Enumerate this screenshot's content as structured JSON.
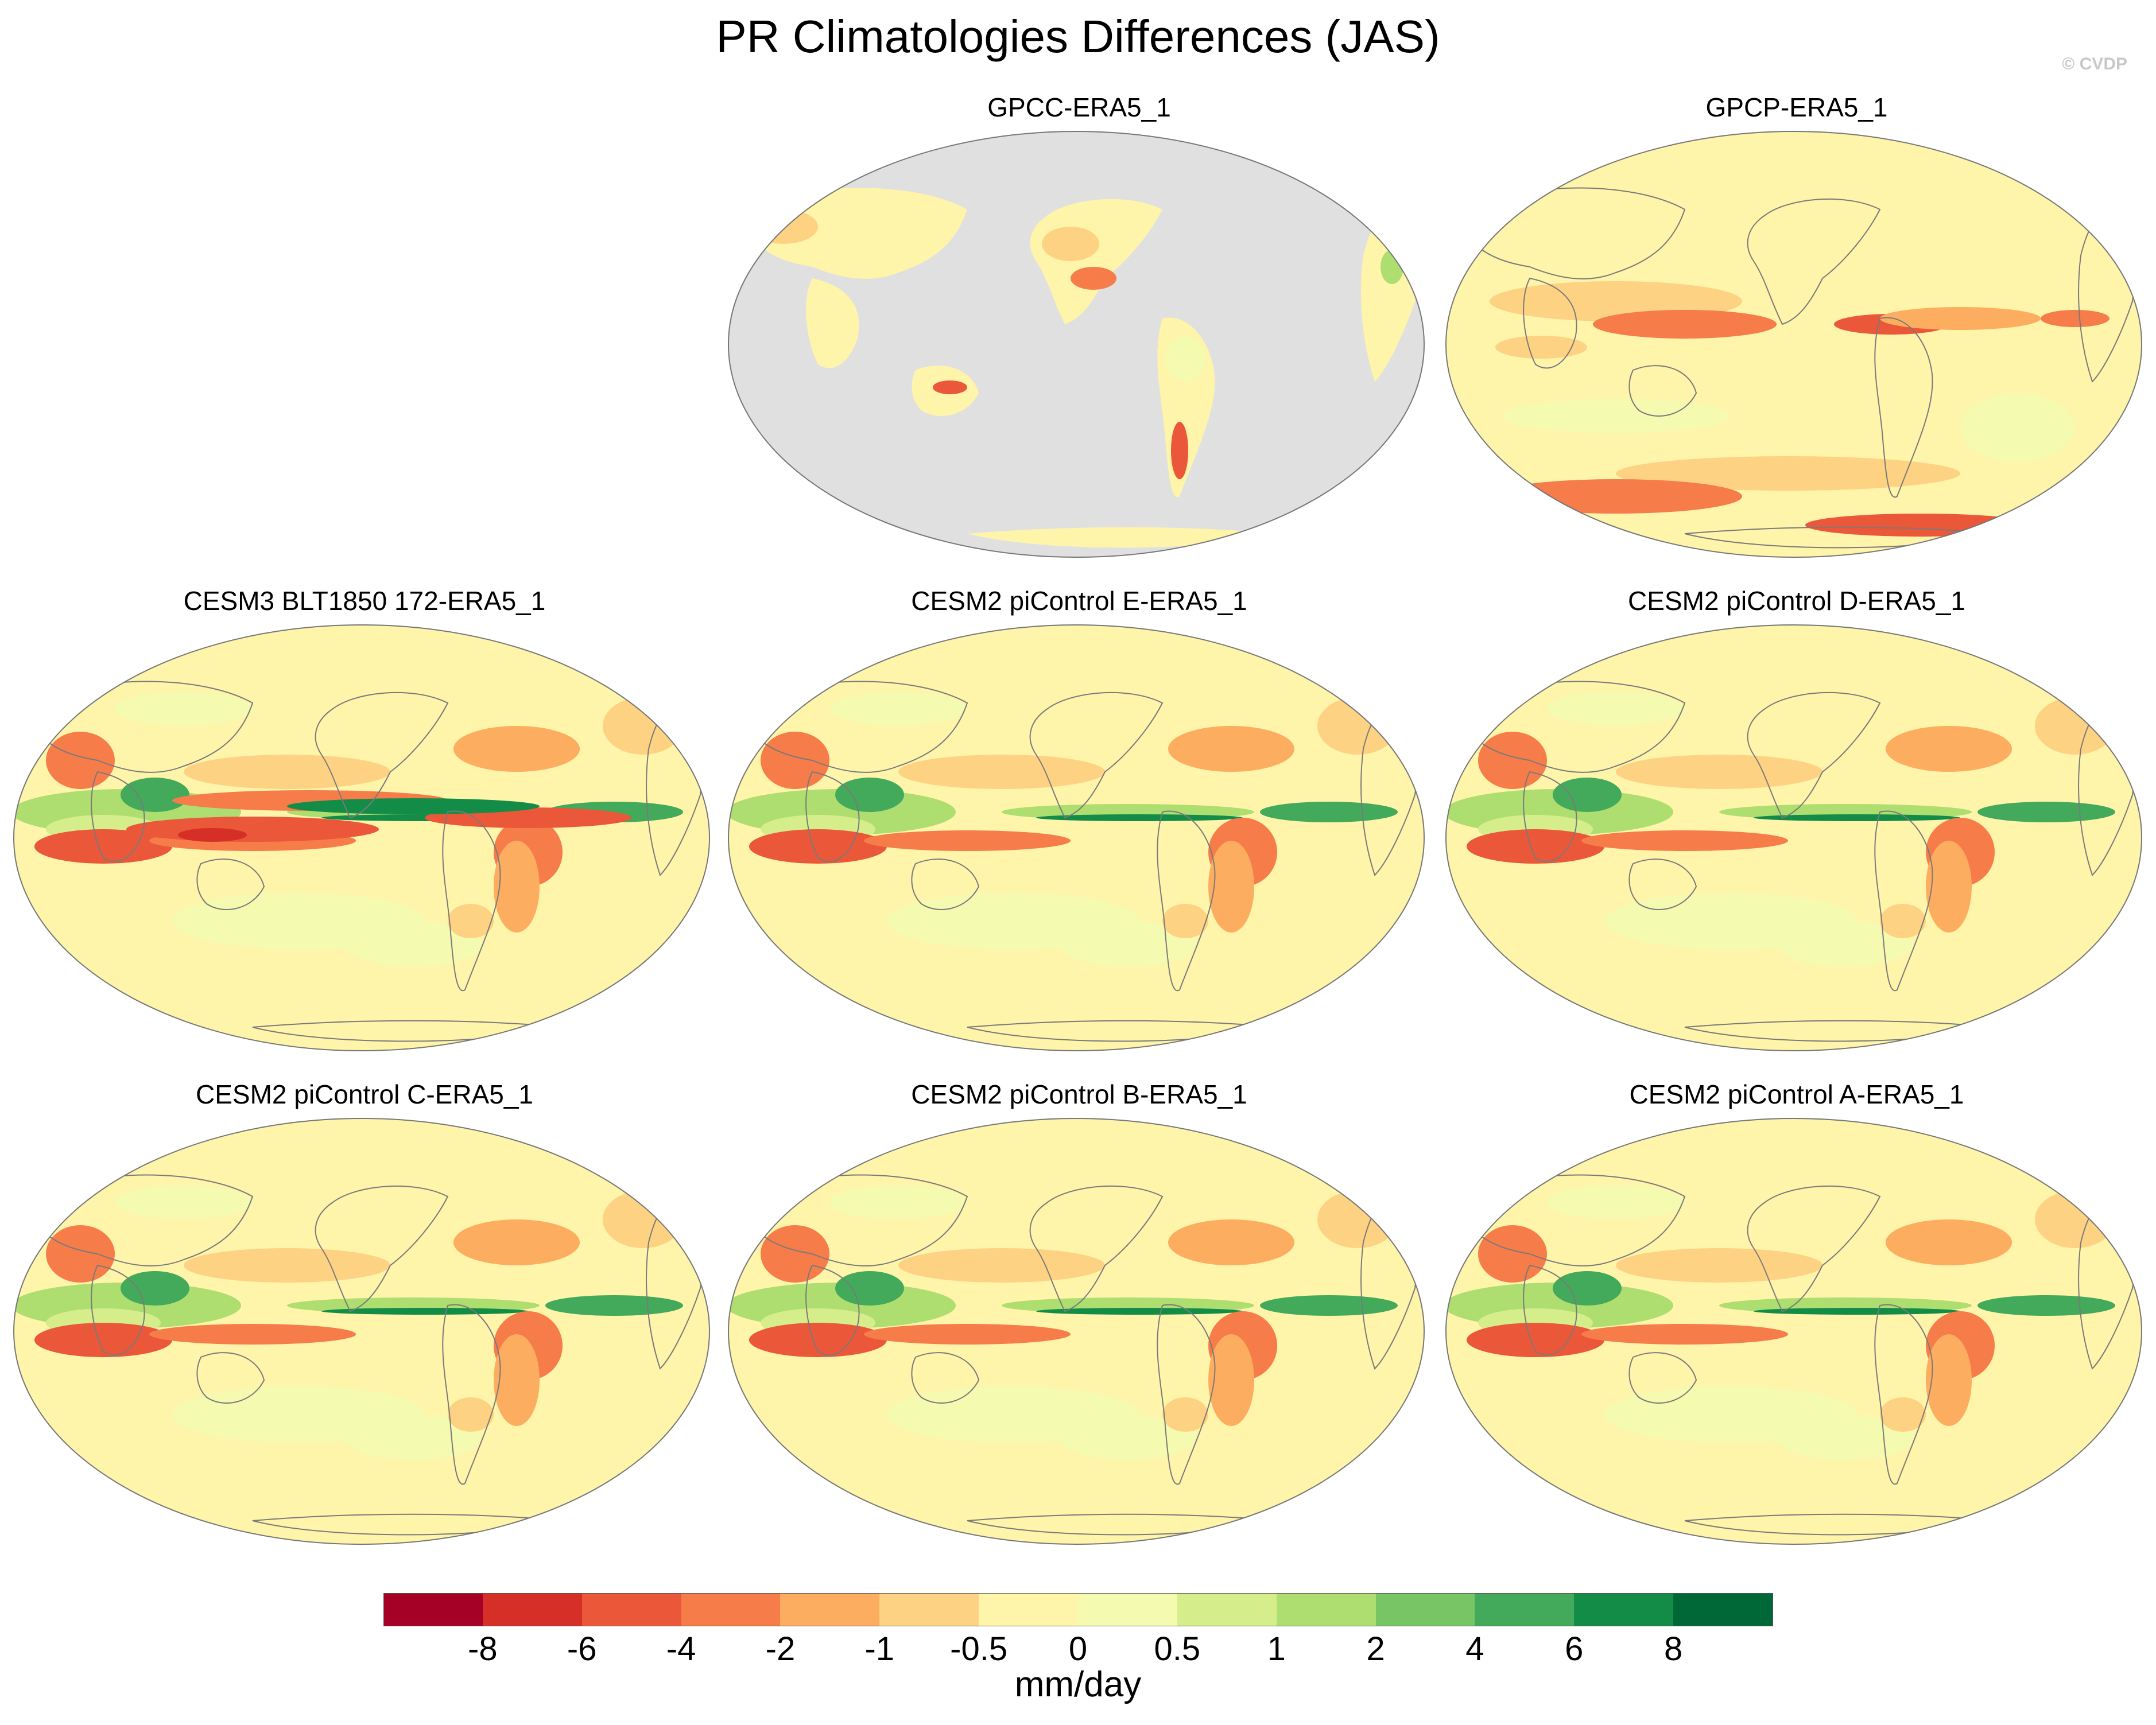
{
  "figure": {
    "title": "PR Climatologies Differences (JAS)",
    "credit": "© CVDP"
  },
  "panels": [
    {
      "title": "GPCC-ERA5_1",
      "land_only": true
    },
    {
      "title": "GPCP-ERA5_1",
      "land_only": false
    },
    {
      "title": "CESM3 BLT1850 172-ERA5_1",
      "land_only": false
    },
    {
      "title": "CESM2 piControl E-ERA5_1",
      "land_only": false
    },
    {
      "title": "CESM2 piControl D-ERA5_1",
      "land_only": false
    },
    {
      "title": "CESM2 piControl C-ERA5_1",
      "land_only": false
    },
    {
      "title": "CESM2 piControl B-ERA5_1",
      "land_only": false
    },
    {
      "title": "CESM2 piControl A-ERA5_1",
      "land_only": false
    }
  ],
  "colorbar": {
    "units": "mm/day",
    "ticks": [
      "-8",
      "-6",
      "-4",
      "-2",
      "-1",
      "-0.5",
      "0",
      "0.5",
      "1",
      "2",
      "4",
      "6",
      "8"
    ],
    "colors": [
      "#a50026",
      "#d62f27",
      "#ea5739",
      "#f67c4a",
      "#fdad60",
      "#fed283",
      "#fef4aa",
      "#f4fab0",
      "#d5ee8b",
      "#aedd70",
      "#78c565",
      "#43a95b",
      "#138c48",
      "#006837"
    ]
  },
  "colors": {
    "missing_land_mask": "#e0e0e0",
    "coastline": "#7a7a7a"
  }
}
